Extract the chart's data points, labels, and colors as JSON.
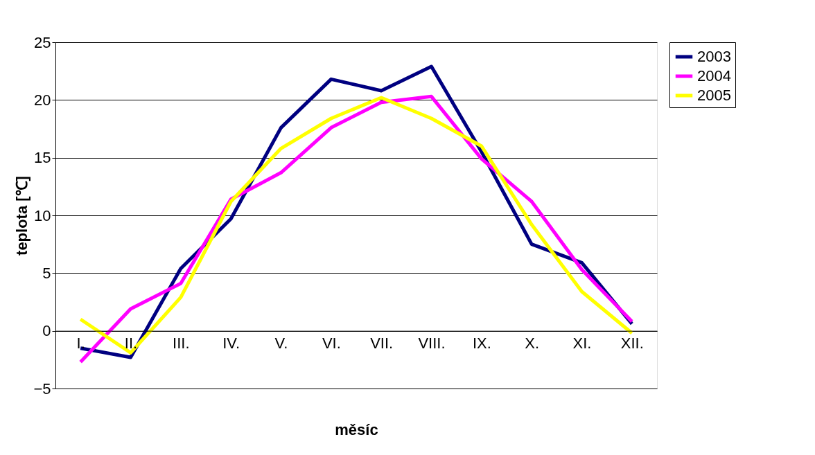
{
  "chart_data": {
    "type": "line",
    "xlabel": "měsíc",
    "ylabel": "teplota [℃]",
    "categories": [
      "I.",
      "II.",
      "III.",
      "IV.",
      "V.",
      "VI.",
      "VII.",
      "VIII.",
      "IX.",
      "X.",
      "XI.",
      "XII."
    ],
    "series": [
      {
        "name": "2003",
        "color": "#000080",
        "values": [
          -1.5,
          -2.3,
          5.4,
          9.7,
          17.6,
          21.8,
          20.8,
          22.9,
          15.5,
          7.5,
          5.9,
          0.6
        ]
      },
      {
        "name": "2004",
        "color": "#ff00ff",
        "values": [
          -2.7,
          1.9,
          4.1,
          11.4,
          13.7,
          17.6,
          19.8,
          20.3,
          14.9,
          11.2,
          5.3,
          0.8
        ]
      },
      {
        "name": "2005",
        "color": "#ffff00",
        "values": [
          1.0,
          -1.9,
          2.9,
          11.2,
          15.8,
          18.4,
          20.2,
          18.4,
          16.0,
          9.2,
          3.4,
          -0.2
        ]
      }
    ],
    "ylim": [
      -5,
      25
    ],
    "yticks": [
      -5,
      0,
      5,
      10,
      15,
      20,
      25
    ],
    "grid": "y",
    "legend": "right",
    "marker": "none",
    "line_style": "solid"
  }
}
